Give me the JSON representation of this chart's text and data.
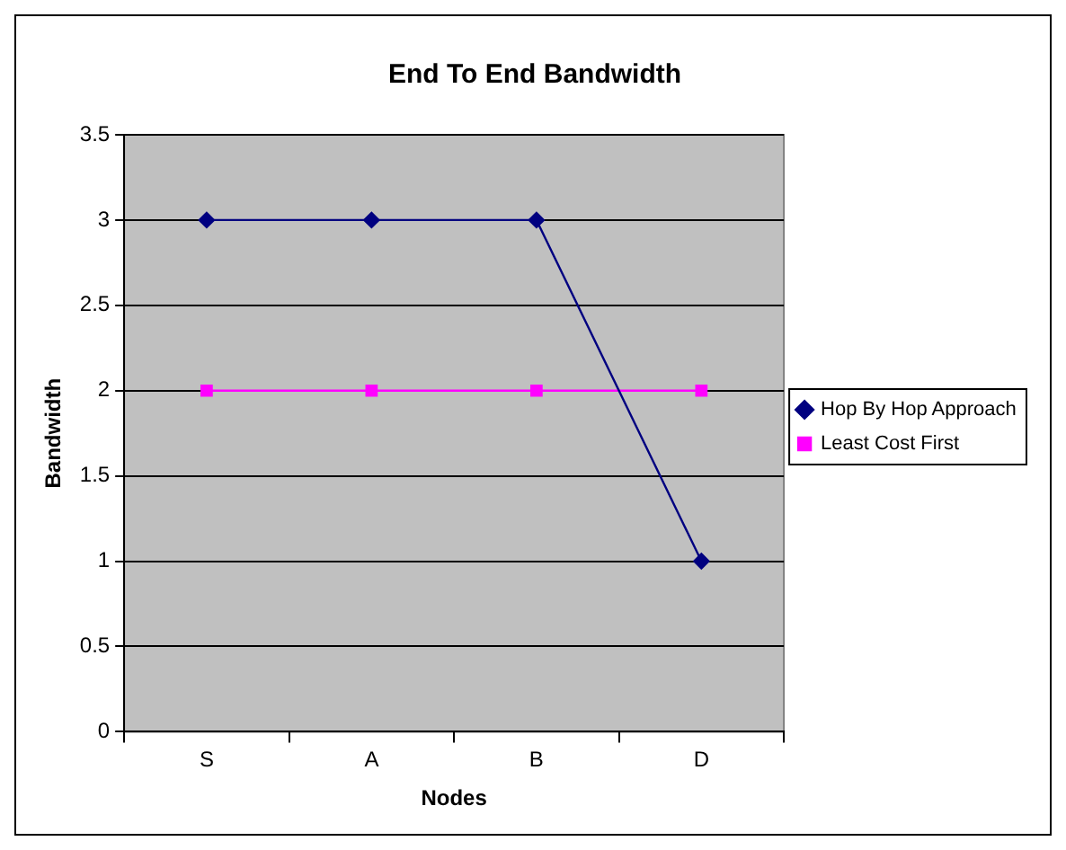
{
  "chart_data": {
    "type": "line",
    "title": "End To End Bandwidth",
    "xlabel": "Nodes",
    "ylabel": "Bandwidth",
    "categories": [
      "S",
      "A",
      "B",
      "D"
    ],
    "series": [
      {
        "name": "Hop By Hop Approach",
        "color": "#000080",
        "marker": "diamond",
        "values": [
          3,
          3,
          3,
          1
        ]
      },
      {
        "name": "Least Cost First",
        "color": "#ff00ff",
        "marker": "square",
        "values": [
          2,
          2,
          2,
          2
        ]
      }
    ],
    "ylim": [
      0,
      3.5
    ],
    "yticks": [
      0,
      0.5,
      1,
      1.5,
      2,
      2.5,
      3,
      3.5
    ],
    "grid": "y",
    "legend": "right"
  }
}
